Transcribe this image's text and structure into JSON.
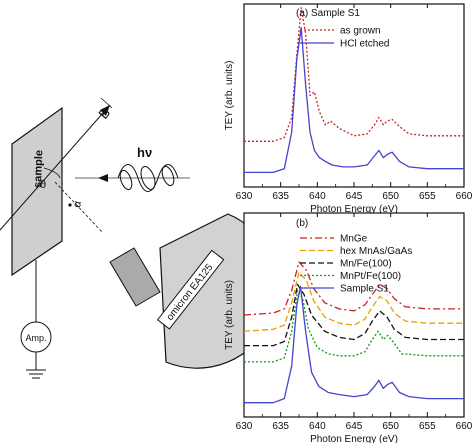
{
  "schematic": {
    "sample_label": "sample",
    "field_label": "B",
    "photon_label": "hν",
    "theta_label": "θ",
    "alpha_label": "α",
    "ammeter_label": "Amp.",
    "analyzer_label": "omicron EA125"
  },
  "chart_data": [
    {
      "type": "line",
      "panel_label": "(a) Sample S1",
      "xlabel": "Photon Energy (eV)",
      "ylabel": "TEY (arb. units)",
      "xlim": [
        630,
        660
      ],
      "xticks": [
        630,
        635,
        640,
        645,
        650,
        655,
        660
      ],
      "ylim": [
        0,
        1
      ],
      "yticks_shown": false,
      "legend_position": "top-right",
      "series": [
        {
          "name": "as grown",
          "color": "#cc2222",
          "dash": "dotted",
          "x": [
            630,
            634,
            635.5,
            636.5,
            637.2,
            637.8,
            638.4,
            639.0,
            639.6,
            640.3,
            641.1,
            641.8,
            643.0,
            645.0,
            646.8,
            647.8,
            648.4,
            649.0,
            649.5,
            650.2,
            651.2,
            652.5,
            655,
            660
          ],
          "y": [
            0.25,
            0.25,
            0.27,
            0.38,
            0.72,
            0.98,
            0.84,
            0.5,
            0.52,
            0.41,
            0.34,
            0.36,
            0.32,
            0.28,
            0.29,
            0.34,
            0.38,
            0.34,
            0.36,
            0.37,
            0.33,
            0.29,
            0.28,
            0.28
          ]
        },
        {
          "name": "HCl etched",
          "color": "#4444cc",
          "dash": "solid",
          "x": [
            630,
            634,
            635.5,
            636.5,
            637.2,
            637.8,
            638.4,
            639.0,
            639.6,
            640.3,
            641.1,
            642.0,
            643.5,
            645.0,
            646.8,
            647.8,
            648.4,
            649.0,
            649.6,
            650.2,
            651.2,
            652.5,
            655,
            660
          ],
          "y": [
            0.08,
            0.08,
            0.1,
            0.3,
            0.7,
            0.87,
            0.56,
            0.3,
            0.2,
            0.16,
            0.14,
            0.12,
            0.11,
            0.11,
            0.12,
            0.17,
            0.2,
            0.16,
            0.18,
            0.19,
            0.14,
            0.11,
            0.1,
            0.1
          ]
        }
      ]
    },
    {
      "type": "line",
      "panel_label": "(b)",
      "xlabel": "Photon Energy (eV)",
      "ylabel": "TEY (arb. units)",
      "xlim": [
        630,
        660
      ],
      "xticks": [
        630,
        635,
        640,
        645,
        650,
        655,
        660
      ],
      "ylim": [
        0,
        1
      ],
      "yticks_shown": false,
      "legend_position": "top-right",
      "series": [
        {
          "name": "MnGe",
          "color": "#cc2222",
          "dash": "dashdot",
          "x": [
            630,
            634,
            635.5,
            636.5,
            637.5,
            638.5,
            639.5,
            641,
            643,
            645,
            646.5,
            647.5,
            648.5,
            649.5,
            650.5,
            652,
            655,
            660
          ],
          "y": [
            0.5,
            0.51,
            0.53,
            0.62,
            0.76,
            0.72,
            0.63,
            0.56,
            0.53,
            0.52,
            0.55,
            0.6,
            0.65,
            0.63,
            0.58,
            0.54,
            0.53,
            0.53
          ]
        },
        {
          "name": "hex MnAs/GaAs",
          "color": "#e8a000",
          "dash": "dashed",
          "x": [
            630,
            634,
            635.5,
            636.5,
            637.5,
            638.5,
            639.5,
            641,
            643,
            645,
            646.5,
            647.5,
            648.5,
            649.5,
            650.5,
            652,
            655,
            660
          ],
          "y": [
            0.42,
            0.43,
            0.45,
            0.56,
            0.71,
            0.67,
            0.57,
            0.49,
            0.46,
            0.45,
            0.48,
            0.54,
            0.59,
            0.57,
            0.51,
            0.47,
            0.46,
            0.46
          ]
        },
        {
          "name": "Mn/Fe(100)",
          "color": "#111111",
          "dash": "dashed",
          "x": [
            630,
            634,
            635.5,
            636.5,
            637.3,
            638.2,
            639.2,
            641,
            643,
            645,
            646.5,
            647.5,
            648.5,
            649.5,
            650.5,
            652,
            655,
            660
          ],
          "y": [
            0.35,
            0.35,
            0.37,
            0.49,
            0.65,
            0.6,
            0.5,
            0.42,
            0.39,
            0.38,
            0.41,
            0.47,
            0.52,
            0.49,
            0.43,
            0.39,
            0.38,
            0.38
          ]
        },
        {
          "name": "MnPt/Fe(100)",
          "color": "#119911",
          "dash": "dotted",
          "x": [
            630,
            634,
            635.5,
            636.5,
            637.3,
            638.0,
            638.8,
            640,
            641.5,
            643,
            645,
            646.5,
            647.5,
            648.3,
            649.0,
            649.6,
            650.3,
            651.5,
            655,
            660
          ],
          "y": [
            0.27,
            0.27,
            0.29,
            0.42,
            0.62,
            0.58,
            0.43,
            0.34,
            0.31,
            0.3,
            0.3,
            0.32,
            0.38,
            0.42,
            0.38,
            0.4,
            0.37,
            0.31,
            0.3,
            0.3
          ]
        },
        {
          "name": "Sample S1",
          "color": "#4444cc",
          "dash": "solid",
          "x": [
            630,
            634,
            635.5,
            636.5,
            637.2,
            637.7,
            638.4,
            639.2,
            640.2,
            641.5,
            643,
            645,
            646.8,
            647.8,
            648.4,
            649.0,
            649.6,
            650.2,
            651.2,
            652.5,
            655,
            660
          ],
          "y": [
            0.07,
            0.07,
            0.09,
            0.25,
            0.55,
            0.64,
            0.42,
            0.22,
            0.15,
            0.12,
            0.11,
            0.1,
            0.11,
            0.15,
            0.18,
            0.14,
            0.16,
            0.17,
            0.12,
            0.1,
            0.09,
            0.09
          ]
        }
      ]
    }
  ]
}
